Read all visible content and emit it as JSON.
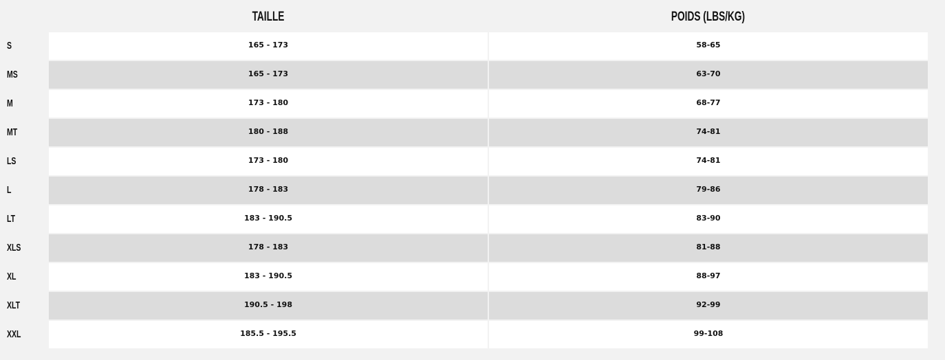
{
  "headers": {
    "taille": "TAILLE",
    "poids": "POIDS (LBS/KG)"
  },
  "rows": [
    {
      "size": "S",
      "taille": "165 - 173",
      "poids": "58-65"
    },
    {
      "size": "MS",
      "taille": "165 - 173",
      "poids": "63-70"
    },
    {
      "size": "M",
      "taille": "173 - 180",
      "poids": "68-77"
    },
    {
      "size": "MT",
      "taille": "180 - 188",
      "poids": "74-81"
    },
    {
      "size": "LS",
      "taille": "173 - 180",
      "poids": "74-81"
    },
    {
      "size": "L",
      "taille": "178 - 183",
      "poids": "79-86"
    },
    {
      "size": "LT",
      "taille": "183 - 190.5",
      "poids": "83-90"
    },
    {
      "size": "XLS",
      "taille": "178 - 183",
      "poids": "81-88"
    },
    {
      "size": "XL",
      "taille": "183 - 190.5",
      "poids": "88-97"
    },
    {
      "size": "XLT",
      "taille": "190.5 - 198",
      "poids": "92-99"
    },
    {
      "size": "XXL",
      "taille": "185.5 - 195.5",
      "poids": "99-108"
    }
  ]
}
